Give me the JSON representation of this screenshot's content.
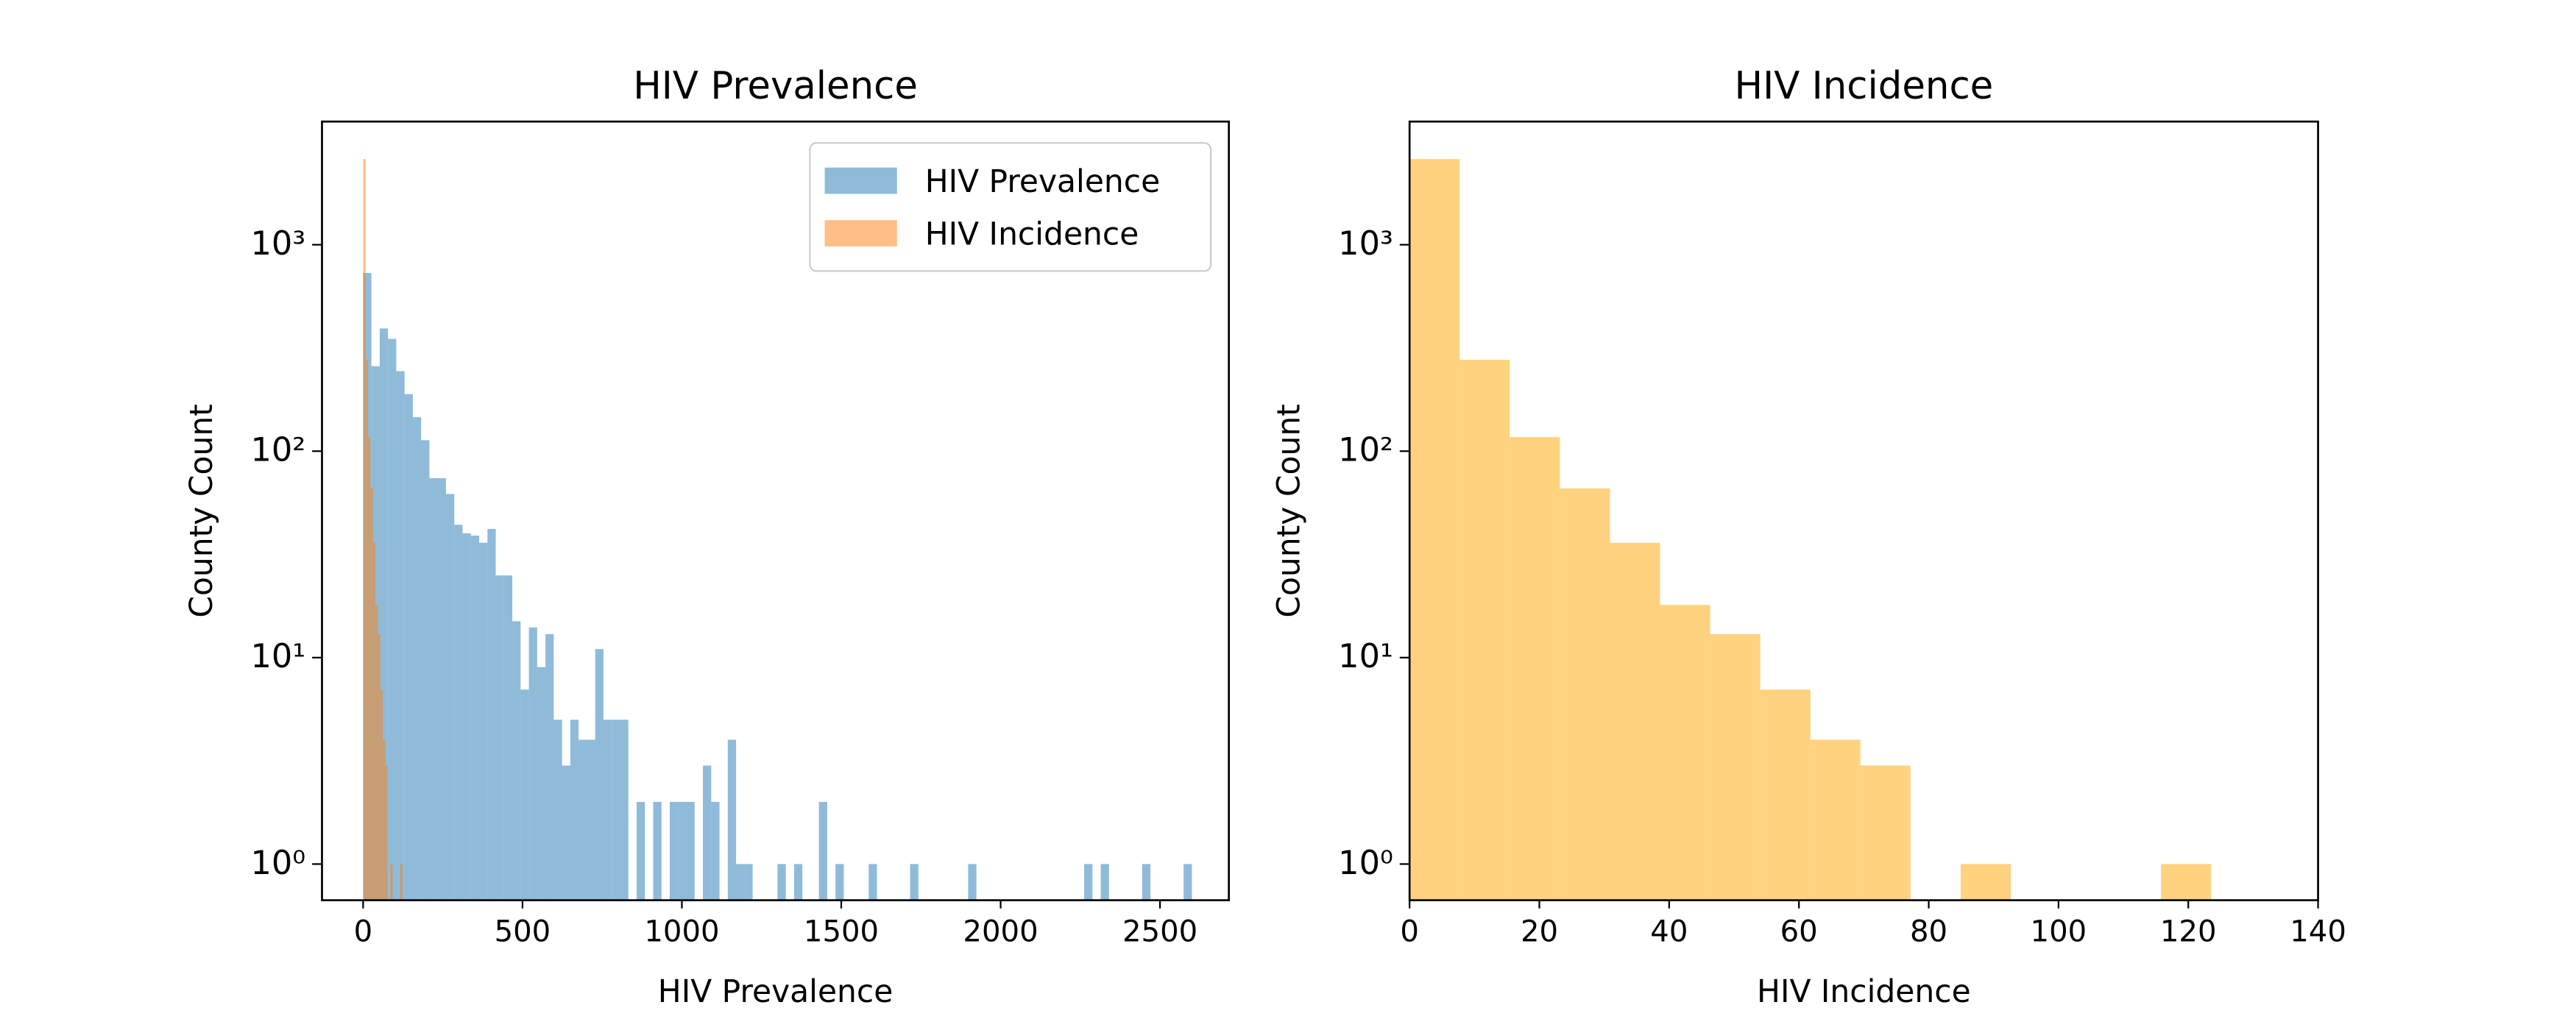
{
  "chart_data": [
    {
      "type": "histogram",
      "title": "HIV Prevalence",
      "x_label": "HIV Prevalence",
      "y_label": "County Count",
      "log_y": true,
      "alpha": 0.5,
      "legend": "upper right",
      "xlim": [
        -129,
        2716
      ],
      "xticks": [
        0,
        500,
        1000,
        1500,
        2000,
        2500
      ],
      "ylim": [
        0.668,
        3950
      ],
      "yticks": [
        {
          "value": 1,
          "label": "10⁰"
        },
        {
          "value": 10,
          "label": "10¹"
        },
        {
          "value": 100,
          "label": "10²"
        },
        {
          "value": 1000,
          "label": "10³"
        }
      ],
      "series": [
        {
          "name": "HIV Prevalence",
          "color": "#1f77b4",
          "bins": [
            0,
            26,
            52,
            78,
            104,
            130,
            156,
            182,
            208,
            234,
            260,
            286,
            312,
            338,
            364,
            390,
            416,
            442,
            468,
            494,
            520,
            546,
            572,
            598,
            624,
            650,
            676,
            702,
            728,
            754,
            780,
            806,
            832,
            858,
            884,
            910,
            936,
            962,
            988,
            1014,
            1040,
            1066,
            1092,
            1118,
            1144,
            1170,
            1196,
            1222,
            1248,
            1274,
            1300,
            1326,
            1352,
            1378,
            1404,
            1430,
            1456,
            1482,
            1508,
            1534,
            1560,
            1586,
            1612,
            1638,
            1664,
            1690,
            1716,
            1742,
            1768,
            1794,
            1820,
            1846,
            1872,
            1898,
            1924,
            1950,
            1976,
            2002,
            2028,
            2054,
            2080,
            2106,
            2132,
            2158,
            2184,
            2210,
            2236,
            2262,
            2288,
            2314,
            2340,
            2366,
            2392,
            2418,
            2444,
            2470,
            2496,
            2522,
            2548,
            2574,
            2600
          ],
          "values": [
            730,
            258,
            393,
            350,
            244,
            189,
            146,
            113,
            74,
            74,
            62,
            44,
            40,
            39,
            36,
            42,
            25,
            25,
            15,
            7,
            14,
            9,
            13,
            5,
            3,
            5,
            4,
            4,
            11,
            5,
            5,
            5,
            0,
            2,
            0,
            2,
            0,
            2,
            2,
            2,
            0,
            3,
            2,
            0,
            4,
            1,
            1,
            0,
            0,
            0,
            1,
            0,
            1,
            0,
            0,
            2,
            0,
            1,
            0,
            0,
            0,
            1,
            0,
            0,
            0,
            0,
            1,
            0,
            0,
            0,
            0,
            0,
            0,
            1,
            0,
            0,
            0,
            0,
            0,
            0,
            0,
            0,
            0,
            0,
            0,
            0,
            0,
            1,
            0,
            1,
            0,
            0,
            0,
            0,
            1,
            0,
            0,
            0,
            0,
            1
          ]
        },
        {
          "name": "HIV Incidence",
          "color": "#ff7f0e",
          "bins": [
            0,
            7.72,
            15.44,
            23.16,
            30.88,
            38.6,
            46.32,
            54.04,
            61.76,
            69.48,
            77.2,
            84.92,
            92.64,
            100.36,
            108.08,
            115.8,
            123.52
          ],
          "values": [
            2600,
            277,
            117,
            66,
            36,
            18,
            13,
            7,
            4,
            3,
            0,
            1,
            0,
            0,
            0,
            1
          ]
        }
      ]
    },
    {
      "type": "histogram",
      "title": "HIV Incidence",
      "x_label": "HIV Incidence",
      "y_label": "County Count",
      "log_y": true,
      "alpha": 0.5,
      "color": "#ffa500",
      "xlim": [
        0,
        140
      ],
      "xticks": [
        0,
        20,
        40,
        60,
        80,
        100,
        120,
        140
      ],
      "ylim": [
        0.668,
        3950
      ],
      "yticks": [
        {
          "value": 1,
          "label": "10⁰"
        },
        {
          "value": 10,
          "label": "10¹"
        },
        {
          "value": 100,
          "label": "10²"
        },
        {
          "value": 1000,
          "label": "10³"
        }
      ],
      "bins": [
        0,
        7.72,
        15.44,
        23.16,
        30.88,
        38.6,
        46.32,
        54.04,
        61.76,
        69.48,
        77.2,
        84.92,
        92.64,
        100.36,
        108.08,
        115.8,
        123.52
      ],
      "values": [
        2600,
        277,
        117,
        66,
        36,
        18,
        13,
        7,
        4,
        3,
        0,
        1,
        0,
        0,
        0,
        1
      ]
    }
  ]
}
